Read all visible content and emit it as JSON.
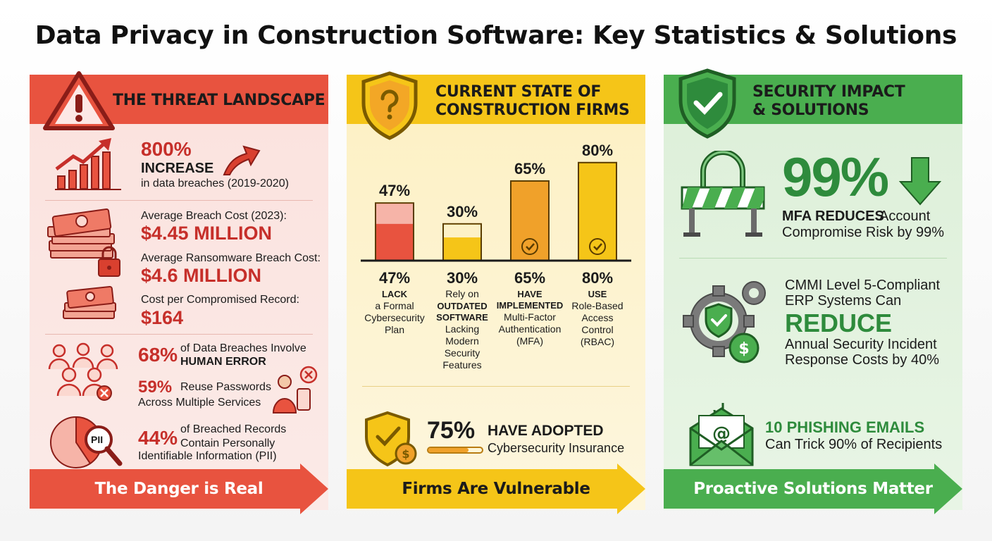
{
  "title": "Data Privacy in Construction Software: Key Statistics & Solutions",
  "colors": {
    "red": "#e8533f",
    "red_dark": "#c62f2a",
    "red_bg": "#fbe0dc",
    "yellow": "#f5c518",
    "yellow_bg": "#fdf3d0",
    "orange": "#f0a12a",
    "green": "#4aae4f",
    "green_dark": "#2e8b3c",
    "green_bg": "#e2f2df"
  },
  "threat": {
    "heading": "THE THREAT LANDSCAPE",
    "increase_value": "800%",
    "increase_label": "INCREASE",
    "increase_desc": "in data breaches (2019-2020)",
    "avg_breach_label": "Average Breach Cost (2023):",
    "avg_breach_value": "$4.45 MILLION",
    "ransomware_label": "Average Ransomware Breach Cost:",
    "ransomware_value": "$4.6 MILLION",
    "record_label": "Cost per Compromised Record:",
    "record_value": "$164",
    "human_pct": "68%",
    "human_text": "of Data Breaches Involve",
    "human_bold": "HUMAN ERROR",
    "reuse_pct": "59%",
    "reuse_text": "Reuse Passwords",
    "reuse_text2": "Across Multiple Services",
    "pii_badge": "PII",
    "pii_pct": "44%",
    "pii_text": "of Breached Records",
    "pii_text2": "Contain Personally",
    "pii_text3": "Identifiable Information (PII)",
    "banner": "The Danger is Real"
  },
  "current": {
    "heading_line1": "CURRENT STATE OF",
    "heading_line2": "CONSTRUCTION FIRMS",
    "adopted_pct": "75%",
    "adopted_bold": "HAVE ADOPTED",
    "adopted_text": "Cybersecurity Insurance",
    "adopted_progress": 0.75,
    "banner": "Firms Are Vulnerable",
    "bars": [
      {
        "top_label": "47%",
        "pct": "47%",
        "line_a": "",
        "bold": "LACK",
        "line_b": "a Formal",
        "line_c": "Cybersecurity",
        "line_d": "Plan",
        "line_e": ""
      },
      {
        "top_label": "30%",
        "pct": "30%",
        "line_a": "Rely on",
        "bold": "OUTDATED SOFTWARE",
        "line_b": "Lacking",
        "line_c": "Modern",
        "line_d": "Security",
        "line_e": "Features"
      },
      {
        "top_label": "65%",
        "pct": "65%",
        "line_a": "",
        "bold": "HAVE IMPLEMENTED",
        "line_b": "Multi-Factor",
        "line_c": "Authentication",
        "line_d": "(MFA)",
        "line_e": ""
      },
      {
        "top_label": "80%",
        "pct": "80%",
        "line_a": "",
        "bold": "USE",
        "line_b": "Role-Based",
        "line_c": "Access",
        "line_d": "Control",
        "line_e": "(RBAC)"
      }
    ]
  },
  "chart_data": {
    "type": "bar",
    "title": "",
    "xlabel": "",
    "ylabel": "",
    "categories": [
      "LACK a Formal Cybersecurity Plan",
      "Rely on OUTDATED SOFTWARE Lacking Modern Security Features",
      "HAVE IMPLEMENTED Multi-Factor Authentication (MFA)",
      "USE Role-Based Access Control (RBAC)"
    ],
    "values": [
      47,
      30,
      65,
      80
    ],
    "ylim": [
      0,
      100
    ],
    "grid": false
  },
  "solutions": {
    "heading_line1": "SECURITY IMPACT",
    "heading_line2": "& SOLUTIONS",
    "mfa_pct": "99%",
    "mfa_bold": "MFA REDUCES",
    "mfa_text": "Account",
    "mfa_text2": "Compromise Risk by 99%",
    "cmmi_line1": "CMMI Level 5-Compliant",
    "cmmi_line2": "ERP Systems Can",
    "cmmi_big": "REDUCE",
    "cmmi_line3": "Annual Security Incident",
    "cmmi_line4": "Response Costs by 40%",
    "phish_bold": "10 PHISHING EMAILS",
    "phish_text": "Can Trick 90% of Recipients",
    "banner": "Proactive Solutions Matter"
  }
}
